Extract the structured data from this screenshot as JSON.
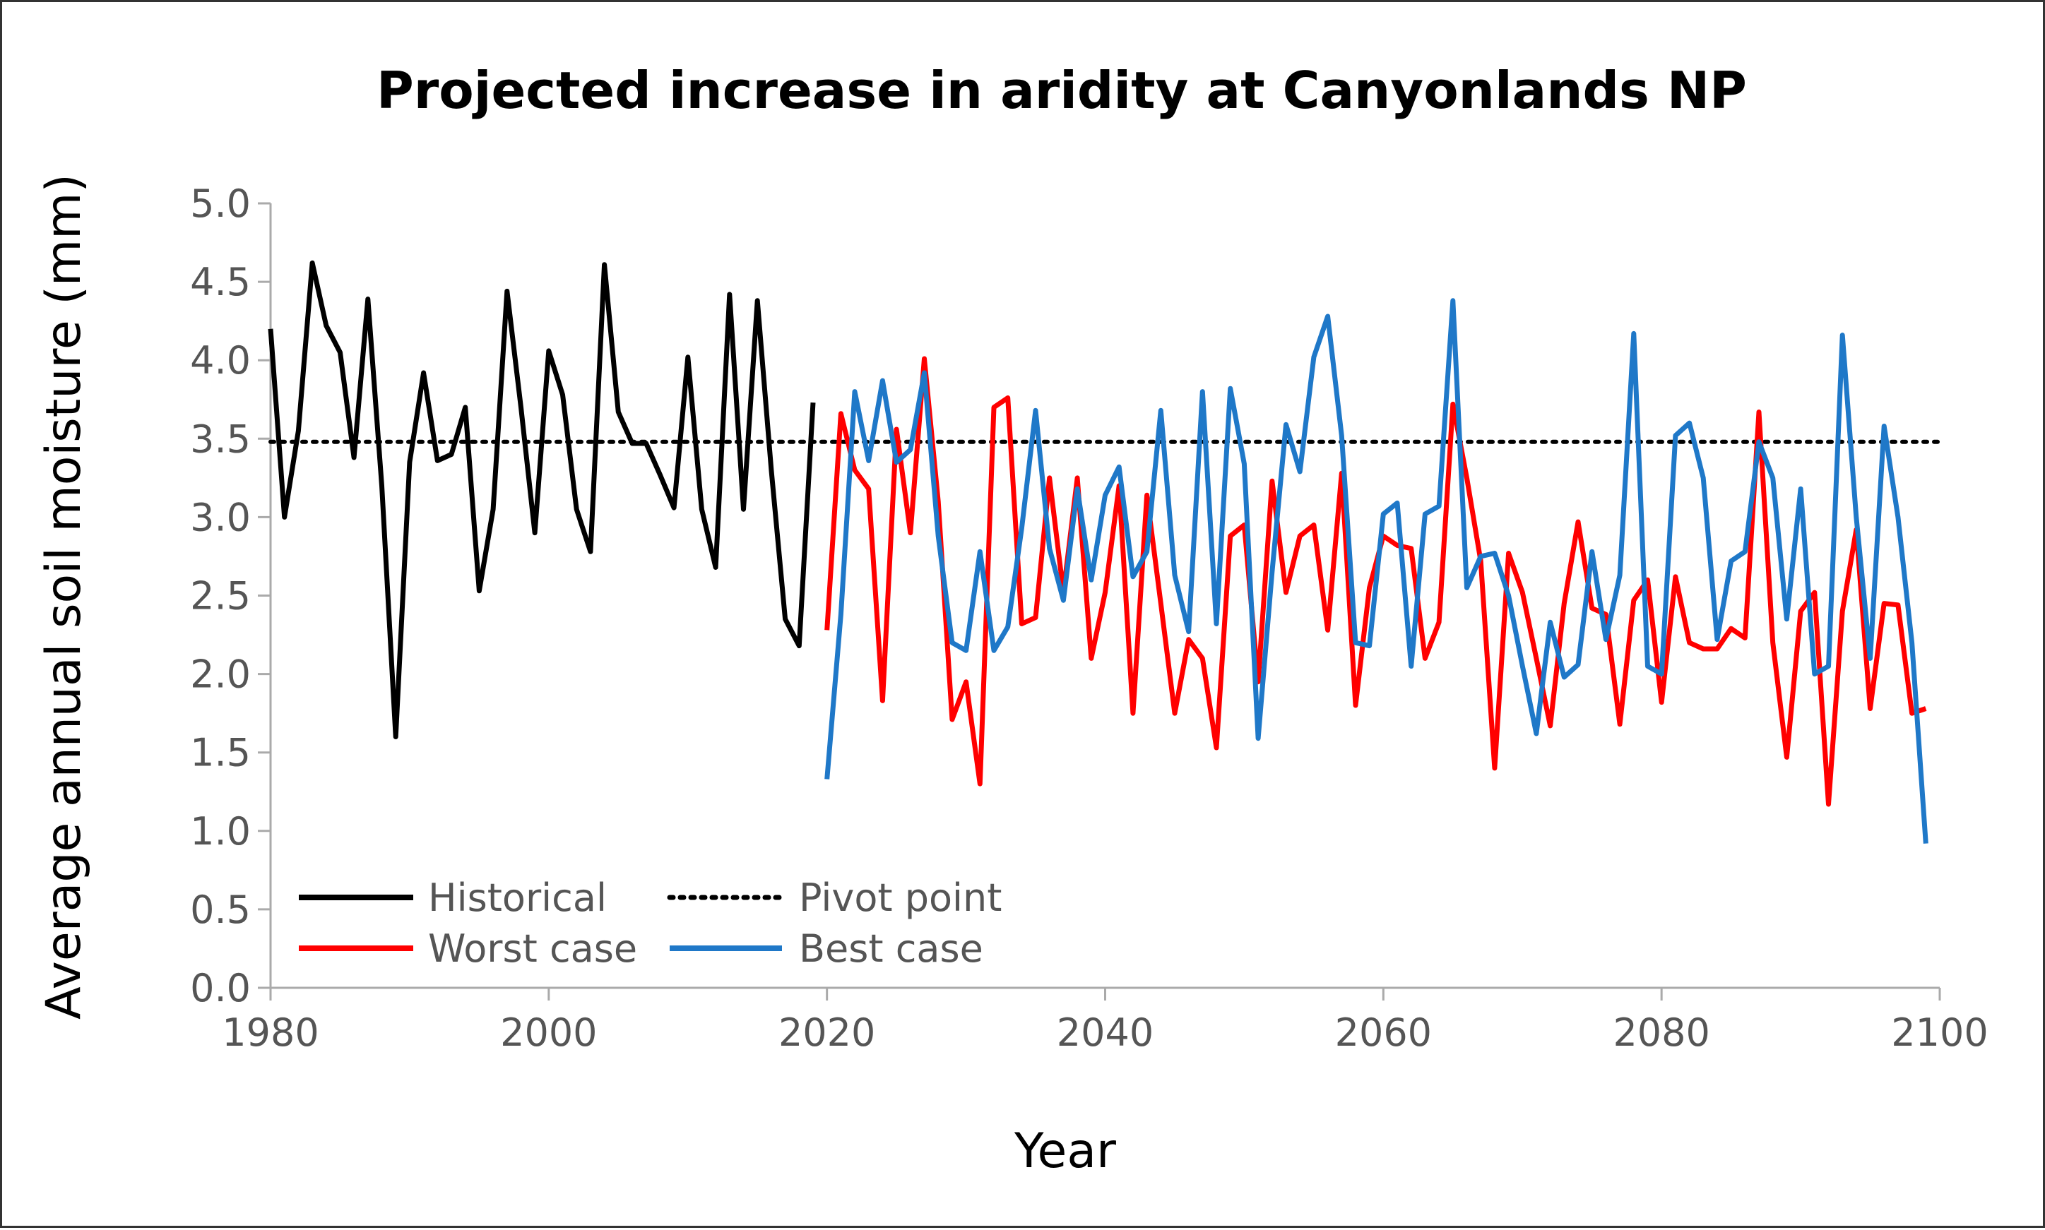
{
  "chart_data": {
    "type": "line",
    "title": "Projected increase in aridity at Canyonlands NP",
    "xlabel": "Year",
    "ylabel": "Average annual soil moisture (mm)",
    "xlim": [
      1980,
      2100
    ],
    "ylim": [
      0.0,
      5.0
    ],
    "x_ticks": [
      "1980",
      "2000",
      "2020",
      "2040",
      "2060",
      "2080",
      "2100"
    ],
    "y_ticks": [
      "0.0",
      "0.5",
      "1.0",
      "1.5",
      "2.0",
      "2.5",
      "3.0",
      "3.5",
      "4.0",
      "4.5",
      "5.0"
    ],
    "grid": false,
    "legend_position": "bottom-left",
    "series": [
      {
        "name": "Historical",
        "color": "#000000",
        "style": "solid",
        "x": [
          1980,
          1981,
          1982,
          1983,
          1984,
          1985,
          1986,
          1987,
          1988,
          1989,
          1990,
          1991,
          1992,
          1993,
          1994,
          1995,
          1996,
          1997,
          1998,
          1999,
          2000,
          2001,
          2002,
          2003,
          2004,
          2005,
          2006,
          2007,
          2008,
          2009,
          2010,
          2011,
          2012,
          2013,
          2014,
          2015,
          2016,
          2017,
          2018,
          2019
        ],
        "y": [
          4.2,
          3.0,
          3.55,
          4.62,
          4.22,
          4.05,
          3.38,
          4.39,
          3.2,
          1.6,
          3.35,
          3.92,
          3.36,
          3.4,
          3.7,
          2.53,
          3.05,
          4.44,
          3.7,
          2.9,
          4.06,
          3.78,
          3.05,
          2.78,
          4.61,
          3.67,
          3.47,
          3.47,
          3.27,
          3.06,
          4.02,
          3.05,
          2.68,
          4.42,
          3.05,
          4.38,
          3.3,
          2.35,
          2.18,
          3.73
        ]
      },
      {
        "name": "Pivot point",
        "color": "#000000",
        "style": "dotted",
        "x": [
          1980,
          2100
        ],
        "y": [
          3.48,
          3.48
        ]
      },
      {
        "name": "Worst case",
        "color": "#ff0000",
        "style": "solid",
        "x": [
          2020,
          2021,
          2022,
          2023,
          2024,
          2025,
          2026,
          2027,
          2028,
          2029,
          2030,
          2031,
          2032,
          2033,
          2034,
          2035,
          2036,
          2037,
          2038,
          2039,
          2040,
          2041,
          2042,
          2043,
          2044,
          2045,
          2046,
          2047,
          2048,
          2049,
          2050,
          2051,
          2052,
          2053,
          2054,
          2055,
          2056,
          2057,
          2058,
          2059,
          2060,
          2061,
          2062,
          2063,
          2064,
          2065,
          2066,
          2067,
          2068,
          2069,
          2070,
          2071,
          2072,
          2073,
          2074,
          2075,
          2076,
          2077,
          2078,
          2079,
          2080,
          2081,
          2082,
          2083,
          2084,
          2085,
          2086,
          2087,
          2088,
          2089,
          2090,
          2091,
          2092,
          2093,
          2094,
          2095,
          2096,
          2097,
          2098,
          2099
        ],
        "y": [
          2.28,
          3.66,
          3.3,
          3.18,
          1.83,
          3.56,
          2.9,
          4.01,
          3.1,
          1.71,
          1.95,
          1.3,
          3.7,
          3.76,
          2.32,
          2.36,
          3.25,
          2.52,
          3.25,
          2.1,
          2.52,
          3.2,
          1.75,
          3.14,
          2.45,
          1.75,
          2.22,
          2.1,
          1.53,
          2.88,
          2.95,
          1.95,
          3.23,
          2.52,
          2.88,
          2.95,
          2.28,
          3.28,
          1.8,
          2.55,
          2.88,
          2.82,
          2.8,
          2.1,
          2.33,
          3.72,
          3.25,
          2.72,
          1.4,
          2.77,
          2.52,
          2.1,
          1.67,
          2.45,
          2.97,
          2.42,
          2.38,
          1.68,
          2.47,
          2.6,
          1.82,
          2.62,
          2.2,
          2.16,
          2.16,
          2.29,
          2.23,
          3.67,
          2.2,
          1.47,
          2.4,
          2.52,
          1.17,
          2.4,
          2.92,
          1.78,
          2.45,
          2.44,
          1.75,
          1.78
        ]
      },
      {
        "name": "Best case",
        "color": "#1f78c8",
        "style": "solid",
        "x": [
          2020,
          2021,
          2022,
          2023,
          2024,
          2025,
          2026,
          2027,
          2028,
          2029,
          2030,
          2031,
          2032,
          2033,
          2034,
          2035,
          2036,
          2037,
          2038,
          2039,
          2040,
          2041,
          2042,
          2043,
          2044,
          2045,
          2046,
          2047,
          2048,
          2049,
          2050,
          2051,
          2052,
          2053,
          2054,
          2055,
          2056,
          2057,
          2058,
          2059,
          2060,
          2061,
          2062,
          2063,
          2064,
          2065,
          2066,
          2067,
          2068,
          2069,
          2070,
          2071,
          2072,
          2073,
          2074,
          2075,
          2076,
          2077,
          2078,
          2079,
          2080,
          2081,
          2082,
          2083,
          2084,
          2085,
          2086,
          2087,
          2088,
          2089,
          2090,
          2091,
          2092,
          2093,
          2094,
          2095,
          2096,
          2097,
          2098,
          2099
        ],
        "y": [
          1.33,
          2.38,
          3.8,
          3.36,
          3.87,
          3.35,
          3.43,
          3.92,
          2.88,
          2.2,
          2.15,
          2.78,
          2.15,
          2.3,
          2.93,
          3.68,
          2.8,
          2.47,
          3.18,
          2.6,
          3.14,
          3.32,
          2.62,
          2.78,
          3.68,
          2.63,
          2.27,
          3.8,
          2.32,
          3.82,
          3.34,
          1.59,
          2.65,
          3.59,
          3.29,
          4.02,
          4.28,
          3.52,
          2.2,
          2.18,
          3.02,
          3.09,
          2.05,
          3.02,
          3.07,
          4.38,
          2.55,
          2.75,
          2.77,
          2.5,
          2.05,
          1.62,
          2.33,
          1.98,
          2.06,
          2.78,
          2.22,
          2.63,
          4.17,
          2.05,
          2.0,
          3.52,
          3.6,
          3.25,
          2.22,
          2.72,
          2.78,
          3.48,
          3.25,
          2.35,
          3.18,
          2.0,
          2.05,
          4.16,
          3.0,
          2.1,
          3.58,
          3.0,
          2.2,
          0.92
        ]
      }
    ]
  }
}
